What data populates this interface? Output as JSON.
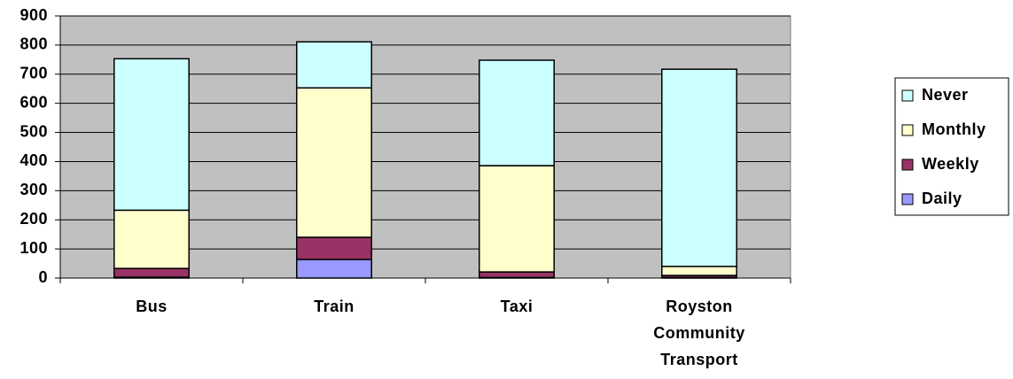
{
  "chart_data": {
    "type": "stacked_bar",
    "categories": [
      "Bus",
      "Train",
      "Taxi",
      "Royston Community Transport"
    ],
    "series": [
      {
        "name": "Daily",
        "color": "#9999ff",
        "values": [
          3,
          64,
          2,
          2
        ]
      },
      {
        "name": "Weekly",
        "color": "#993366",
        "values": [
          30,
          76,
          19,
          7
        ]
      },
      {
        "name": "Monthly",
        "color": "#ffffcc",
        "values": [
          200,
          513,
          365,
          31
        ]
      },
      {
        "name": "Never",
        "color": "#ccffff",
        "values": [
          520,
          158,
          362,
          677
        ]
      }
    ],
    "ylim": [
      0,
      900
    ],
    "yticks": [
      0,
      100,
      200,
      300,
      400,
      500,
      600,
      700,
      800,
      900
    ],
    "grid": true,
    "legend": "right",
    "plot_background": "#c0c0c0"
  }
}
